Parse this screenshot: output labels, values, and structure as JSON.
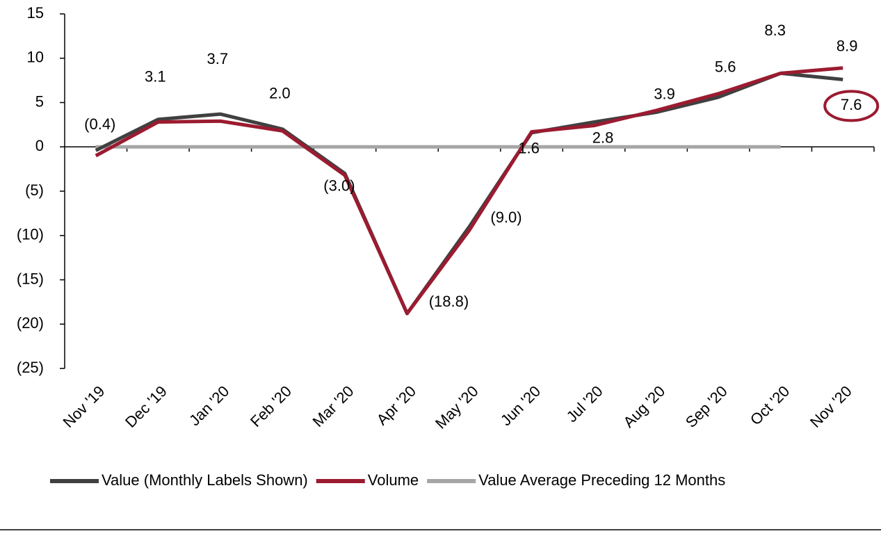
{
  "chart_data": {
    "type": "line",
    "categories": [
      "Nov '19",
      "Dec '19",
      "Jan '20",
      "Feb '20",
      "Mar '20",
      "Apr '20",
      "May '20",
      "Jun '20",
      "Jul '20",
      "Aug '20",
      "Sep '20",
      "Oct '20",
      "Nov '20"
    ],
    "series": [
      {
        "name": "Value (Monthly Labels Shown)",
        "color": "#404040",
        "values": [
          -0.4,
          3.1,
          3.7,
          2.0,
          -3.0,
          -18.8,
          -9.0,
          1.6,
          2.8,
          3.9,
          5.6,
          8.3,
          7.6
        ],
        "value_labels": [
          "(0.4)",
          "3.1",
          "3.7",
          "2.0",
          "(3.0)",
          "(18.8)",
          "(9.0)",
          "1.6",
          "2.8",
          "3.9",
          "5.6",
          "8.3",
          "7.6"
        ]
      },
      {
        "name": "Volume",
        "color": "#9b1b30",
        "values": [
          -1.0,
          2.8,
          2.9,
          1.8,
          -3.2,
          -18.8,
          -9.4,
          1.7,
          2.4,
          4.1,
          6.0,
          8.3,
          8.9
        ],
        "value_labels": [
          null,
          null,
          null,
          null,
          null,
          null,
          null,
          null,
          null,
          null,
          null,
          null,
          "8.9"
        ]
      },
      {
        "name": "Value Average Preceding 12 Months",
        "color": "#a6a6a6",
        "values": [
          0,
          0,
          0,
          0,
          0,
          0,
          0,
          0,
          0,
          0,
          0,
          0,
          null
        ]
      }
    ],
    "ylim": [
      -25,
      15
    ],
    "yticks": [
      {
        "value": -25,
        "label": "(25)"
      },
      {
        "value": -20,
        "label": "(20)"
      },
      {
        "value": -15,
        "label": "(15)"
      },
      {
        "value": -10,
        "label": "(10)"
      },
      {
        "value": -5,
        "label": "(5)"
      },
      0,
      5,
      10,
      15
    ],
    "legend": "bottom"
  }
}
